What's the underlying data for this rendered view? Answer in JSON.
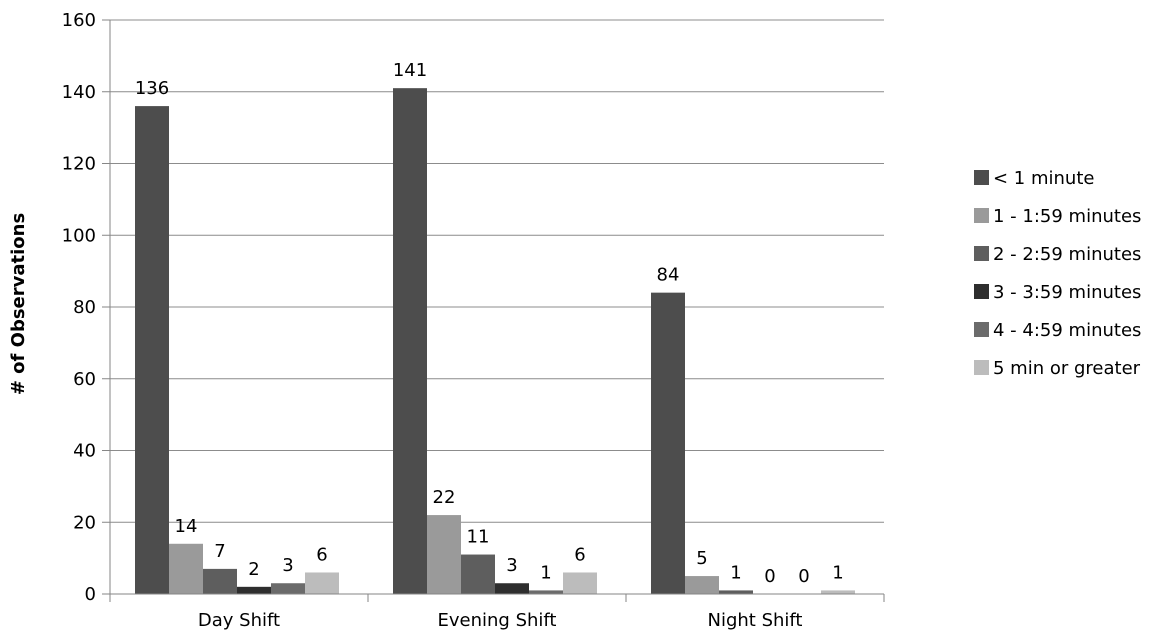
{
  "chart_data": {
    "type": "bar",
    "title": "",
    "xlabel": "",
    "ylabel": "# of Observations",
    "ylim": [
      0,
      160
    ],
    "yticks": [
      0,
      20,
      40,
      60,
      80,
      100,
      120,
      140,
      160
    ],
    "grid": true,
    "legend_position": "right",
    "categories": [
      "Day Shift",
      "Evening Shift",
      "Night Shift"
    ],
    "series": [
      {
        "name": "< 1 minute",
        "color": "#4d4d4d",
        "values": [
          136,
          141,
          84
        ]
      },
      {
        "name": "1 - 1:59 minutes",
        "color": "#9a9a9a",
        "values": [
          14,
          22,
          5
        ]
      },
      {
        "name": "2 - 2:59 minutes",
        "color": "#5e5e5e",
        "values": [
          7,
          11,
          1
        ]
      },
      {
        "name": "3 - 3:59 minutes",
        "color": "#2e2e2e",
        "values": [
          2,
          3,
          0
        ]
      },
      {
        "name": "4 - 4:59 minutes",
        "color": "#6b6b6b",
        "values": [
          3,
          1,
          0
        ]
      },
      {
        "name": "5 min or greater",
        "color": "#bcbcbc",
        "values": [
          6,
          6,
          1
        ]
      }
    ]
  }
}
